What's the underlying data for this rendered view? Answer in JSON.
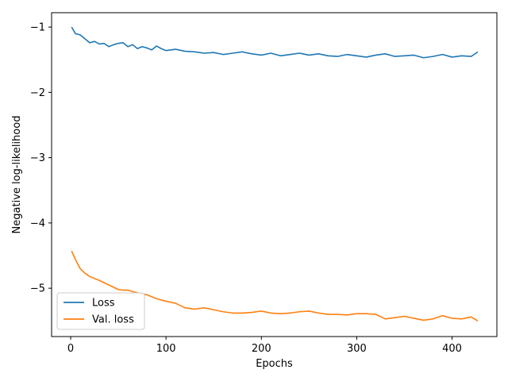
{
  "chart_data": {
    "type": "line",
    "title": "",
    "xlabel": "Epochs",
    "ylabel": "Negative log-likelihood",
    "xlim": [
      -20,
      447
    ],
    "ylim": [
      -5.74,
      -0.78
    ],
    "x_ticks": [
      0,
      100,
      200,
      300,
      400
    ],
    "x_tick_labels": [
      "0",
      "100",
      "200",
      "300",
      "400"
    ],
    "y_ticks": [
      -1,
      -2,
      -3,
      -4,
      -5
    ],
    "y_tick_labels": [
      "−1",
      "−2",
      "−3",
      "−4",
      "−5"
    ],
    "grid": false,
    "legend_position": "lower-left",
    "series": [
      {
        "name": "Loss",
        "color": "#1f77b4",
        "x": [
          1,
          5,
          10,
          15,
          20,
          25,
          30,
          35,
          40,
          45,
          50,
          55,
          60,
          65,
          70,
          75,
          80,
          85,
          90,
          95,
          100,
          110,
          120,
          130,
          140,
          150,
          160,
          170,
          180,
          190,
          200,
          210,
          220,
          230,
          240,
          250,
          260,
          270,
          280,
          290,
          300,
          310,
          320,
          330,
          340,
          350,
          360,
          370,
          380,
          390,
          400,
          410,
          420,
          427
        ],
        "y": [
          -1.0,
          -1.1,
          -1.12,
          -1.18,
          -1.24,
          -1.22,
          -1.26,
          -1.25,
          -1.3,
          -1.27,
          -1.25,
          -1.24,
          -1.3,
          -1.27,
          -1.33,
          -1.3,
          -1.32,
          -1.35,
          -1.29,
          -1.33,
          -1.36,
          -1.34,
          -1.37,
          -1.38,
          -1.4,
          -1.39,
          -1.42,
          -1.4,
          -1.38,
          -1.41,
          -1.43,
          -1.4,
          -1.44,
          -1.42,
          -1.4,
          -1.43,
          -1.41,
          -1.44,
          -1.45,
          -1.42,
          -1.44,
          -1.46,
          -1.43,
          -1.41,
          -1.45,
          -1.44,
          -1.43,
          -1.47,
          -1.45,
          -1.42,
          -1.46,
          -1.44,
          -1.45,
          -1.38
        ]
      },
      {
        "name": "Val. loss",
        "color": "#ff7f0e",
        "x": [
          1,
          5,
          10,
          15,
          20,
          30,
          40,
          50,
          55,
          60,
          70,
          80,
          90,
          100,
          110,
          120,
          130,
          140,
          150,
          160,
          170,
          180,
          190,
          200,
          210,
          220,
          230,
          240,
          250,
          260,
          270,
          280,
          290,
          300,
          310,
          320,
          330,
          340,
          350,
          360,
          370,
          380,
          390,
          400,
          410,
          420,
          427
        ],
        "y": [
          -4.43,
          -4.56,
          -4.7,
          -4.77,
          -4.82,
          -4.88,
          -4.95,
          -5.02,
          -5.03,
          -5.03,
          -5.07,
          -5.1,
          -5.16,
          -5.2,
          -5.23,
          -5.3,
          -5.32,
          -5.3,
          -5.33,
          -5.36,
          -5.38,
          -5.38,
          -5.37,
          -5.35,
          -5.38,
          -5.39,
          -5.38,
          -5.36,
          -5.35,
          -5.38,
          -5.4,
          -5.4,
          -5.41,
          -5.39,
          -5.39,
          -5.4,
          -5.47,
          -5.45,
          -5.43,
          -5.46,
          -5.49,
          -5.47,
          -5.42,
          -5.46,
          -5.47,
          -5.44,
          -5.5
        ]
      }
    ]
  }
}
